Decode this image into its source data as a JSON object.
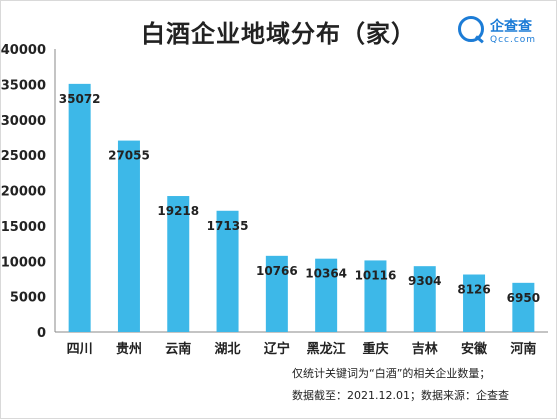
{
  "title": "白酒企业地域分布（家）",
  "logo": {
    "name": "企查查",
    "domain": "Qcc.com"
  },
  "notes": [
    "仅统计关键词为“白酒”的相关企业数量；",
    "数据截至：2021.12.01；数据来源：企查查"
  ],
  "chart_data": {
    "type": "bar",
    "title": "白酒企业地域分布（家）",
    "xlabel": "",
    "ylabel": "",
    "categories": [
      "四川",
      "贵州",
      "云南",
      "湖北",
      "辽宁",
      "黑龙江",
      "重庆",
      "吉林",
      "安徽",
      "河南"
    ],
    "values": [
      35072,
      27055,
      19218,
      17135,
      10766,
      10364,
      10116,
      9304,
      8126,
      6950
    ],
    "ylim": [
      0,
      40000
    ],
    "yticks": [
      0,
      5000,
      10000,
      15000,
      20000,
      25000,
      30000,
      35000,
      40000
    ],
    "grid": false,
    "legend": "none",
    "bar_color": "#3db8e8"
  }
}
